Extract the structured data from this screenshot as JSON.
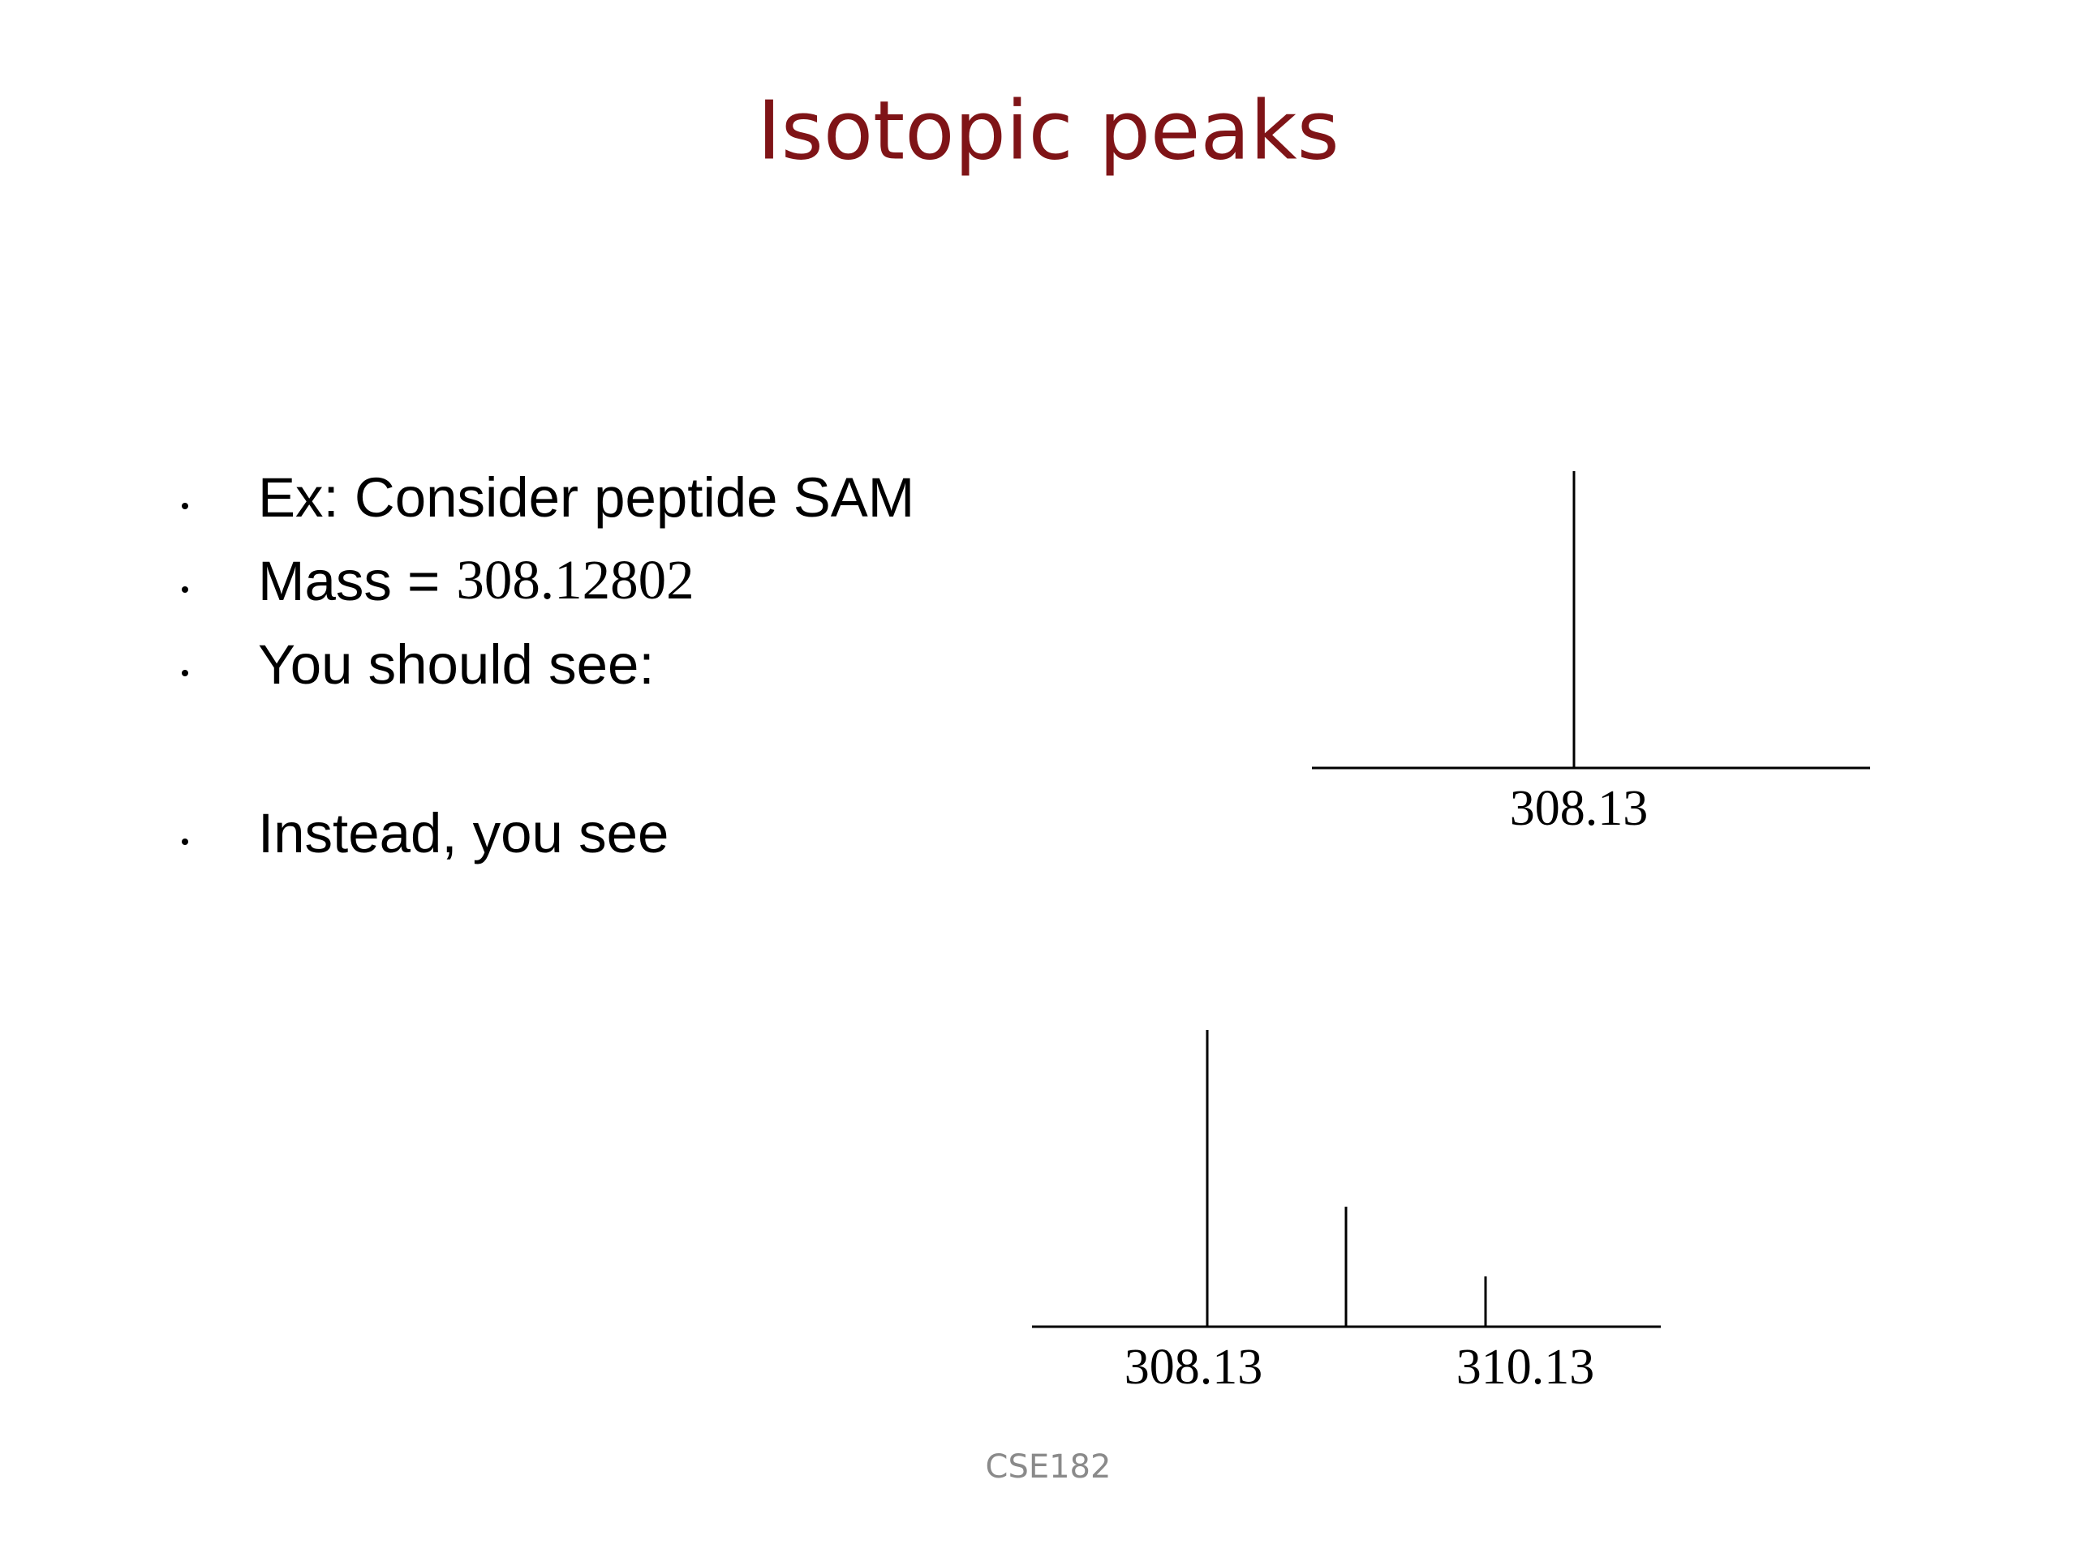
{
  "title": "Isotopic peaks",
  "bullets": [
    {
      "text": "Ex: Consider peptide SAM"
    },
    {
      "text": "Mass =",
      "value": "308.12802"
    },
    {
      "text": "You should see:"
    },
    {
      "text": "Instead, you see"
    }
  ],
  "spectrum_expected": {
    "labels": [
      "308.13"
    ]
  },
  "spectrum_observed": {
    "labels": [
      "308.13",
      "310.13"
    ]
  },
  "footer": "CSE182"
}
